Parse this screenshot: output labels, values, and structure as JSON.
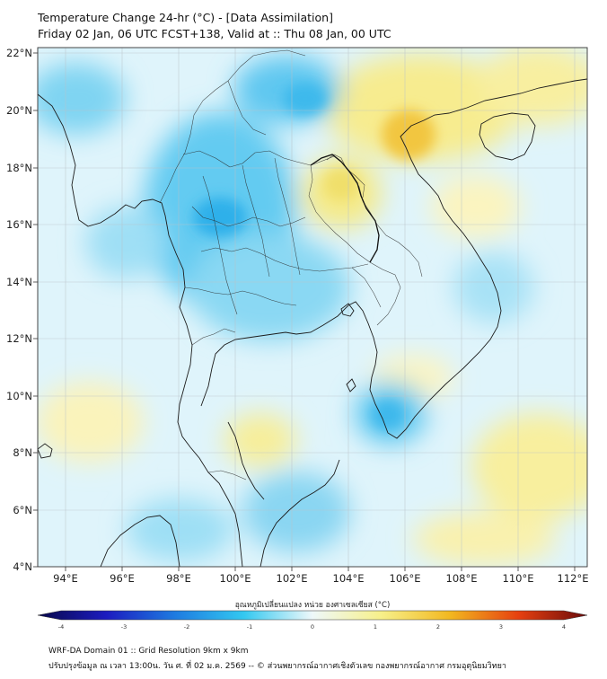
{
  "header": {
    "title": "Temperature Change 24-hr (°C) - [Data Assimilation]",
    "subtitle": "Friday 02 Jan, 06 UTC FCST+138, Valid at :: Thu 08 Jan, 00 UTC"
  },
  "map": {
    "lon_range": [
      93,
      112.3
    ],
    "lat_range": [
      4,
      22.2
    ],
    "x_ticks": [
      "94°E",
      "96°E",
      "98°E",
      "100°E",
      "102°E",
      "104°E",
      "106°E",
      "108°E",
      "110°E",
      "112°E"
    ],
    "y_ticks": [
      "22°N",
      "20°N",
      "18°N",
      "16°N",
      "14°N",
      "12°N",
      "10°N",
      "8°N",
      "6°N",
      "4°N"
    ],
    "gridlines": true
  },
  "colorbar": {
    "title": "อุณหภูมิเปลี่ยนแปลง หน่วย องศาเซลเซียส (°C)",
    "min": -4,
    "max": 4,
    "labels": [
      "-4",
      "-3",
      "-2",
      "-1",
      "0",
      "1",
      "2",
      "3",
      "4"
    ],
    "colors": [
      "#08084a",
      "#1c1cc0",
      "#1e7be0",
      "#33c8f0",
      "#eef8fa",
      "#f7f08a",
      "#f2b820",
      "#e64010",
      "#6a0b0b"
    ]
  },
  "footer": {
    "line1": "WRF-DA Domain 01 :: Grid Resolution 9km x 9km",
    "line2": "ปรับปรุงข้อมูล ณ เวลา 13:00น. วัน ศ. ที่ 02 ม.ค. 2569 -- © ส่วนพยากรณ์อากาศเชิงตัวเลข กองพยากรณ์อากาศ กรมอุตุนิยมวิทยา"
  }
}
